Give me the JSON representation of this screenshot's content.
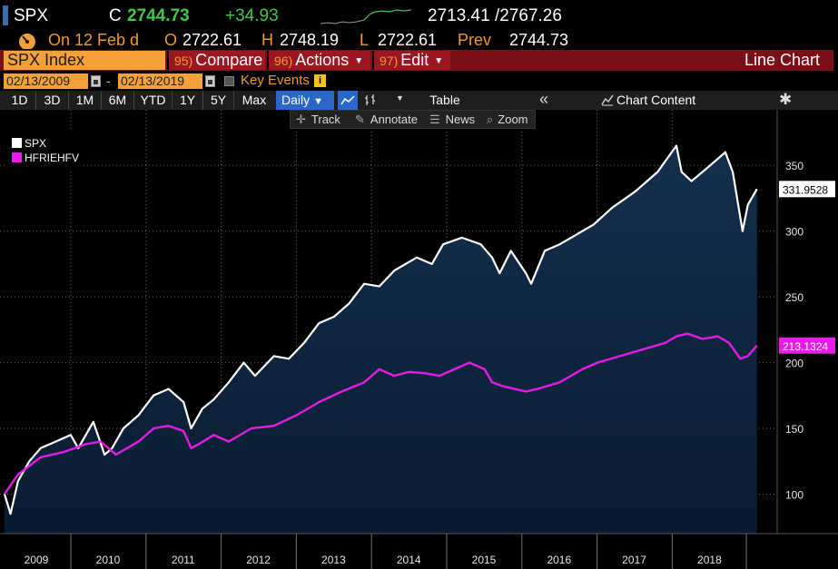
{
  "ticker": {
    "symbol": "SPX",
    "close_prefix": "C",
    "close": "2744.73",
    "change": "+34.93",
    "range": "2713.41 /2767.26"
  },
  "quote": {
    "on_label": "On 12 Feb d",
    "open_label": "O",
    "open": "2722.61",
    "high_label": "H",
    "high": "2748.19",
    "low_label": "L",
    "low": "2722.61",
    "prev_label": "Prev",
    "prev": "2744.73"
  },
  "toolbar": {
    "security": "SPX Index",
    "compare_num": "95)",
    "compare_label": "Compare",
    "actions_num": "96)",
    "actions_label": "Actions",
    "edit_num": "97)",
    "edit_label": "Edit",
    "chart_type": "Line Chart"
  },
  "dates": {
    "start": "02/13/2009",
    "separator": "-",
    "end": "02/13/2019",
    "key_events": "Key Events"
  },
  "periods": [
    "1D",
    "3D",
    "1M",
    "6M",
    "YTD",
    "1Y",
    "5Y",
    "Max"
  ],
  "frequency": "Daily",
  "panel": {
    "table_label": "Table",
    "chart_content_label": "Chart Content"
  },
  "tools": {
    "track": "Track",
    "annotate": "Annotate",
    "news": "News",
    "zoom": "Zoom"
  },
  "colors": {
    "spx": "#ffffff",
    "hfriehfv": "#e81ce8",
    "area_top": "#14304f",
    "area_bottom": "#0a1b30",
    "accent_orange": "#f4a13b",
    "bar_red": "#7a0f18"
  },
  "chart_data": {
    "type": "line",
    "x_labels": [
      "2009",
      "2010",
      "2011",
      "2012",
      "2013",
      "2014",
      "2015",
      "2016",
      "2017",
      "2018"
    ],
    "ylim": [
      70,
      375
    ],
    "y_ticks": [
      100,
      150,
      200,
      250,
      300,
      350
    ],
    "grid": true,
    "legend_position": "top-left",
    "series": [
      {
        "name": "SPX",
        "last_value": "331.9528",
        "x": [
          2009.12,
          2009.2,
          2009.3,
          2009.45,
          2009.6,
          2009.8,
          2010.0,
          2010.1,
          2010.3,
          2010.45,
          2010.55,
          2010.7,
          2010.9,
          2011.1,
          2011.3,
          2011.5,
          2011.6,
          2011.75,
          2011.9,
          2012.1,
          2012.3,
          2012.45,
          2012.7,
          2012.9,
          2013.1,
          2013.3,
          2013.5,
          2013.7,
          2013.9,
          2014.1,
          2014.3,
          2014.6,
          2014.8,
          2014.95,
          2015.2,
          2015.45,
          2015.6,
          2015.7,
          2015.85,
          2016.05,
          2016.12,
          2016.3,
          2016.5,
          2016.8,
          2016.95,
          2017.2,
          2017.5,
          2017.8,
          2018.05,
          2018.12,
          2018.25,
          2018.5,
          2018.7,
          2018.8,
          2018.93,
          2019.0,
          2019.12
        ],
        "y": [
          100,
          85,
          110,
          125,
          135,
          140,
          145,
          135,
          155,
          130,
          135,
          150,
          160,
          175,
          180,
          170,
          150,
          165,
          172,
          185,
          200,
          190,
          205,
          203,
          215,
          230,
          235,
          245,
          260,
          258,
          270,
          280,
          275,
          290,
          295,
          290,
          280,
          268,
          285,
          268,
          260,
          285,
          290,
          300,
          305,
          318,
          330,
          345,
          365,
          345,
          338,
          350,
          360,
          345,
          300,
          320,
          332
        ]
      },
      {
        "name": "HFRIEHFV",
        "last_value": "213.1324",
        "x": [
          2009.12,
          2009.3,
          2009.6,
          2009.9,
          2010.2,
          2010.4,
          2010.6,
          2010.9,
          2011.1,
          2011.3,
          2011.5,
          2011.6,
          2011.7,
          2011.9,
          2012.1,
          2012.4,
          2012.7,
          2013.0,
          2013.3,
          2013.6,
          2013.9,
          2014.1,
          2014.3,
          2014.5,
          2014.7,
          2014.9,
          2015.1,
          2015.3,
          2015.5,
          2015.6,
          2015.75,
          2015.9,
          2016.05,
          2016.2,
          2016.5,
          2016.8,
          2017.0,
          2017.3,
          2017.6,
          2017.9,
          2018.05,
          2018.2,
          2018.4,
          2018.6,
          2018.75,
          2018.9,
          2019.0,
          2019.12
        ],
        "y": [
          100,
          115,
          128,
          132,
          138,
          140,
          130,
          140,
          150,
          152,
          148,
          135,
          138,
          145,
          140,
          150,
          152,
          160,
          170,
          178,
          185,
          195,
          190,
          193,
          192,
          190,
          195,
          200,
          195,
          185,
          182,
          180,
          178,
          180,
          185,
          195,
          200,
          205,
          210,
          215,
          220,
          222,
          218,
          220,
          215,
          203,
          205,
          213
        ]
      }
    ]
  }
}
